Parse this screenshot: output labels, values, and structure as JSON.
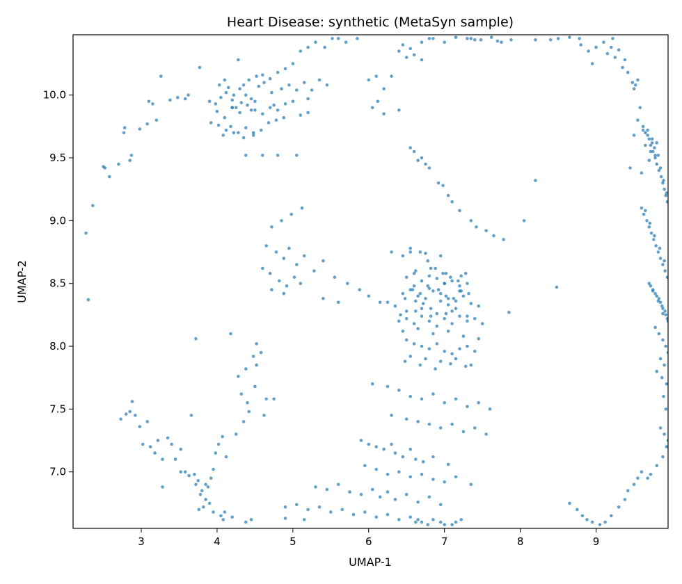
{
  "chart_data": {
    "type": "scatter",
    "title": "Heart Disease: synthetic (MetaSyn sample)",
    "xlabel": "UMAP-1",
    "ylabel": "UMAP-2",
    "xlim": [
      2.1,
      9.95
    ],
    "ylim": [
      6.55,
      10.48
    ],
    "xticks": [
      3,
      4,
      5,
      6,
      7,
      8,
      9
    ],
    "yticks": [
      7.0,
      7.5,
      8.0,
      8.5,
      9.0,
      9.5,
      10.0
    ],
    "grid": false,
    "point_color": "#1f77b4",
    "series": [
      {
        "x": [
          2.27,
          2.3,
          2.36,
          2.5,
          2.52,
          2.58,
          2.7,
          2.77,
          2.78,
          2.85,
          2.87,
          2.98,
          3.08,
          3.1,
          3.15,
          3.2,
          3.26,
          3.38,
          3.48,
          3.58,
          3.62,
          3.77,
          3.9,
          3.98,
          4.03,
          4.1,
          4.15,
          4.22,
          4.28,
          4.35,
          4.42,
          4.52,
          4.6,
          4.7,
          4.8,
          4.9,
          5.0,
          5.1,
          5.2,
          5.3,
          5.42,
          5.52,
          4.05,
          4.12,
          4.2,
          4.3,
          4.38,
          4.45,
          4.55,
          4.62,
          4.72,
          4.85,
          4.95,
          5.05,
          5.15,
          5.25,
          5.35,
          5.45,
          4.0,
          4.1,
          4.2,
          4.3,
          4.4,
          4.5,
          4.6,
          4.7,
          4.8,
          4.9,
          5.0,
          5.1,
          5.2,
          4.25,
          4.5,
          4.75,
          5.2,
          3.92,
          4.02,
          4.12,
          4.18,
          4.28,
          4.38,
          4.48,
          4.58,
          4.68,
          4.78,
          4.88,
          4.08,
          4.22,
          4.35,
          4.48,
          4.2,
          4.32,
          4.45,
          4.38,
          4.6,
          4.8,
          5.05,
          5.6,
          5.7,
          5.85,
          6.0,
          6.1,
          6.2,
          6.3,
          6.4,
          6.5,
          6.6,
          6.7,
          6.85,
          7.0,
          7.15,
          7.3,
          7.4,
          6.45,
          6.55,
          6.7,
          6.8,
          7.35,
          7.48,
          7.62,
          7.7,
          7.75,
          7.88,
          8.2,
          8.4,
          8.5,
          8.65,
          8.78,
          8.8,
          8.9,
          8.95,
          9.0,
          9.1,
          9.15,
          9.2,
          9.25,
          9.3,
          9.35,
          9.42,
          9.48,
          9.5,
          9.55,
          9.22,
          9.38,
          9.52,
          6.05,
          6.12,
          6.2,
          6.4,
          6.55,
          6.6,
          6.65,
          6.7,
          6.75,
          6.8,
          6.92,
          6.98,
          7.05,
          7.1,
          7.2,
          7.35,
          7.42,
          7.55,
          7.65,
          7.78,
          6.3,
          6.45,
          6.55,
          6.68,
          6.78,
          6.88,
          6.98,
          7.08,
          7.18,
          7.28,
          6.58,
          6.68,
          6.78,
          6.92,
          7.02,
          7.12,
          7.22,
          7.32,
          6.25,
          6.35,
          6.48,
          6.62,
          6.72,
          6.82,
          6.95,
          7.05,
          7.15,
          6.42,
          6.62,
          6.82,
          7.02,
          6.4,
          6.5,
          6.6,
          6.7,
          6.8,
          6.9,
          7.0,
          7.1,
          7.2,
          7.3,
          7.4,
          7.5,
          6.45,
          6.65,
          6.85,
          7.05,
          7.25,
          7.45,
          6.5,
          6.6,
          6.7,
          6.8,
          6.9,
          7.0,
          7.1,
          7.2,
          7.3,
          7.4,
          6.55,
          6.75,
          6.95,
          7.15,
          7.35,
          6.48,
          6.68,
          6.88,
          7.08,
          7.28,
          6.45,
          6.55,
          6.65,
          6.75,
          6.85,
          6.95,
          7.05,
          7.15,
          7.25,
          7.35,
          7.45,
          6.6,
          6.8,
          7.0,
          7.2,
          6.5,
          6.7,
          6.9,
          7.1,
          7.3,
          6.5,
          6.6,
          6.7,
          6.8,
          6.9,
          7.0,
          7.1,
          7.2,
          7.3,
          6.62,
          6.82,
          7.02,
          7.22,
          6.55,
          6.75,
          6.95,
          6.05,
          6.25,
          6.4,
          6.55,
          6.7,
          6.85,
          7.0,
          7.15,
          7.3,
          7.45,
          7.6,
          6.3,
          6.5,
          6.65,
          6.8,
          6.95,
          7.1,
          7.25,
          7.4,
          7.55,
          5.9,
          6.0,
          6.1,
          6.2,
          6.3,
          6.35,
          6.45,
          6.55,
          6.62,
          6.72,
          6.85,
          7.05,
          5.95,
          6.1,
          6.25,
          6.4,
          6.55,
          6.7,
          6.85,
          7.0,
          7.15,
          7.35,
          5.3,
          5.45,
          5.6,
          5.75,
          5.9,
          6.05,
          6.15,
          6.25,
          6.35,
          6.5,
          6.65,
          6.8,
          6.95,
          4.9,
          5.05,
          5.2,
          5.35,
          5.5,
          5.65,
          5.8,
          5.95,
          6.1,
          6.25,
          6.4,
          6.55,
          6.7,
          6.85,
          7.0,
          7.15,
          4.65,
          4.78,
          4.88,
          4.95,
          5.05,
          5.15,
          5.28,
          5.4,
          5.55,
          5.72,
          5.88,
          6.0,
          6.15,
          4.72,
          4.85,
          4.98,
          5.12,
          4.6,
          4.7,
          4.82,
          4.92,
          5.02,
          4.72,
          5.1,
          4.88,
          5.4,
          5.6,
          3.72,
          4.18,
          4.28,
          4.4,
          4.5,
          4.58,
          4.65,
          4.75,
          4.52,
          4.35,
          4.25,
          4.42,
          4.62,
          4.52,
          4.38,
          4.48,
          4.32,
          2.73,
          2.8,
          2.85,
          2.88,
          2.92,
          2.98,
          3.02,
          3.08,
          3.12,
          3.18,
          3.22,
          3.28,
          3.35,
          3.4,
          3.45,
          3.52,
          3.58,
          3.63,
          3.7,
          3.72,
          3.75,
          3.8,
          3.85,
          3.88,
          3.92,
          3.95,
          3.98,
          4.02,
          4.07,
          4.12,
          3.78,
          3.85,
          3.9,
          3.82,
          3.76,
          3.95,
          4.1,
          4.05,
          3.66,
          3.52,
          3.28,
          4.08,
          4.2,
          4.38,
          4.45,
          4.9,
          5.15,
          8.65,
          8.75,
          8.82,
          8.88,
          8.95,
          9.05,
          9.12,
          9.2,
          9.3,
          9.38,
          9.42,
          9.5,
          9.55,
          9.6,
          9.68,
          9.72,
          9.8,
          9.88,
          9.93,
          9.95,
          9.9,
          9.62,
          9.65,
          9.7,
          9.72,
          9.75,
          9.78,
          9.8,
          9.83,
          9.86,
          9.88,
          9.9,
          9.92,
          9.94,
          9.68,
          9.74,
          9.82,
          9.85,
          9.89,
          9.93,
          9.77,
          9.6,
          9.63,
          9.67,
          9.7,
          9.73,
          9.76,
          9.79,
          9.82,
          9.85,
          9.88,
          9.91,
          9.94,
          9.65,
          9.71,
          9.77,
          9.84,
          9.9,
          9.7,
          9.75,
          9.8,
          9.85,
          9.88,
          9.92,
          9.95,
          9.72,
          9.78,
          9.83,
          9.87,
          9.91,
          9.94,
          9.75,
          9.82,
          9.88,
          9.78,
          9.83,
          9.88,
          9.92,
          9.95,
          9.85,
          9.9,
          9.8,
          9.87,
          9.93,
          9.89,
          9.92,
          9.85,
          9.55,
          9.62,
          9.68,
          9.74,
          9.58,
          9.65,
          9.72,
          9.8,
          9.5,
          9.45,
          9.6,
          9.7,
          9.78,
          8.05,
          8.2,
          8.48,
          7.85,
          6.95,
          7.1,
          7.22,
          6.78,
          6.65,
          6.62
        ],
        "y": [
          8.9,
          8.37,
          9.12,
          9.43,
          9.42,
          9.35,
          9.45,
          9.7,
          9.74,
          9.48,
          9.52,
          9.73,
          9.77,
          9.95,
          9.93,
          9.8,
          10.15,
          9.96,
          9.98,
          9.97,
          10.0,
          10.22,
          9.95,
          9.93,
          10.08,
          10.12,
          10.06,
          10.0,
          10.28,
          10.08,
          10.12,
          10.15,
          10.16,
          10.13,
          10.18,
          10.21,
          10.25,
          10.35,
          10.38,
          10.42,
          10.38,
          10.45,
          9.98,
          10.02,
          9.96,
          10.05,
          10.0,
          9.97,
          10.07,
          10.1,
          10.02,
          10.05,
          10.08,
          10.04,
          10.1,
          10.04,
          10.12,
          10.08,
          9.87,
          9.82,
          9.9,
          9.86,
          9.92,
          9.88,
          9.85,
          9.9,
          9.88,
          9.93,
          9.95,
          9.84,
          9.86,
          9.9,
          9.95,
          9.92,
          9.97,
          9.78,
          9.76,
          9.72,
          9.75,
          9.7,
          9.74,
          9.68,
          9.72,
          9.78,
          9.8,
          9.82,
          9.68,
          9.7,
          9.66,
          9.7,
          9.9,
          9.94,
          9.88,
          9.52,
          9.52,
          9.52,
          9.52,
          10.45,
          10.42,
          10.45,
          10.12,
          10.15,
          10.05,
          10.15,
          10.35,
          10.3,
          10.32,
          10.28,
          10.45,
          10.42,
          10.46,
          10.45,
          10.44,
          10.4,
          10.37,
          10.42,
          10.45,
          10.45,
          10.44,
          10.46,
          10.43,
          10.42,
          10.44,
          10.44,
          10.44,
          10.45,
          10.46,
          10.45,
          10.4,
          10.35,
          10.25,
          10.38,
          10.42,
          10.33,
          10.38,
          10.3,
          10.36,
          10.22,
          10.18,
          10.1,
          10.05,
          10.12,
          10.45,
          10.28,
          10.08,
          9.9,
          9.95,
          9.85,
          9.88,
          9.58,
          9.55,
          9.48,
          9.5,
          9.45,
          9.42,
          9.3,
          9.28,
          9.2,
          9.15,
          9.08,
          9.0,
          8.95,
          8.92,
          8.88,
          8.85,
          8.75,
          8.72,
          8.78,
          8.75,
          8.68,
          8.62,
          8.58,
          8.55,
          8.52,
          8.58,
          8.45,
          8.42,
          8.48,
          8.45,
          8.4,
          8.38,
          8.44,
          8.42,
          8.35,
          8.32,
          8.38,
          8.36,
          8.34,
          8.3,
          8.36,
          8.33,
          8.3,
          8.25,
          8.28,
          8.24,
          8.26,
          8.2,
          8.22,
          8.18,
          8.24,
          8.2,
          8.16,
          8.22,
          8.18,
          8.24,
          8.2,
          8.22,
          8.18,
          8.12,
          8.14,
          8.1,
          8.12,
          8.08,
          8.06,
          8.05,
          8.02,
          8.0,
          7.98,
          8.02,
          7.96,
          7.94,
          7.98,
          8.0,
          7.96,
          7.92,
          7.9,
          7.88,
          7.9,
          7.85,
          7.88,
          7.85,
          7.82,
          7.86,
          7.84,
          8.42,
          8.45,
          8.4,
          8.38,
          8.44,
          8.42,
          8.38,
          8.36,
          8.4,
          8.34,
          8.32,
          8.48,
          8.46,
          8.5,
          8.44,
          8.28,
          8.3,
          8.26,
          8.28,
          8.24,
          8.55,
          8.58,
          8.52,
          8.56,
          8.54,
          8.5,
          8.52,
          8.48,
          8.5,
          8.6,
          8.62,
          8.58,
          8.56,
          8.75,
          8.74,
          8.72,
          7.7,
          7.68,
          7.65,
          7.6,
          7.58,
          7.62,
          7.55,
          7.58,
          7.52,
          7.55,
          7.5,
          7.45,
          7.42,
          7.4,
          7.38,
          7.35,
          7.38,
          7.32,
          7.35,
          7.3,
          7.25,
          7.22,
          7.2,
          7.18,
          7.22,
          7.15,
          7.12,
          7.18,
          7.1,
          7.08,
          7.12,
          7.06,
          7.05,
          7.02,
          6.98,
          7.0,
          6.96,
          6.98,
          6.94,
          6.92,
          6.96,
          6.9,
          6.88,
          6.86,
          6.9,
          6.84,
          6.82,
          6.86,
          6.8,
          6.84,
          6.78,
          6.82,
          6.76,
          6.8,
          6.74,
          6.72,
          6.74,
          6.7,
          6.72,
          6.68,
          6.7,
          6.66,
          6.68,
          6.64,
          6.66,
          6.62,
          6.64,
          6.6,
          6.62,
          6.58,
          6.6,
          8.8,
          8.75,
          8.7,
          8.78,
          8.65,
          8.72,
          8.6,
          8.68,
          8.55,
          8.5,
          8.45,
          8.4,
          8.35,
          8.95,
          9.0,
          9.05,
          9.1,
          8.62,
          8.58,
          8.52,
          8.48,
          8.55,
          8.45,
          8.5,
          8.42,
          8.38,
          8.35,
          8.06,
          8.1,
          7.76,
          7.55,
          7.68,
          7.95,
          7.58,
          7.58,
          7.85,
          7.4,
          7.3,
          7.48,
          7.45,
          8.02,
          7.82,
          7.92,
          7.62,
          7.42,
          7.46,
          7.48,
          7.56,
          7.45,
          7.36,
          7.22,
          7.4,
          7.2,
          7.15,
          7.25,
          7.1,
          7.27,
          7.22,
          7.1,
          7.18,
          7.0,
          6.97,
          6.98,
          6.9,
          6.93,
          6.85,
          6.9,
          6.88,
          6.95,
          7.02,
          7.15,
          7.22,
          7.28,
          7.12,
          6.82,
          6.78,
          6.75,
          6.72,
          6.7,
          6.68,
          6.68,
          6.65,
          7.45,
          7.0,
          6.88,
          6.62,
          6.64,
          6.6,
          6.62,
          6.63,
          6.62,
          6.75,
          6.7,
          6.65,
          6.62,
          6.6,
          6.58,
          6.6,
          6.65,
          6.72,
          6.78,
          6.85,
          6.9,
          6.95,
          7.0,
          6.95,
          6.98,
          7.05,
          7.12,
          7.2,
          7.25,
          7.3,
          9.75,
          9.7,
          9.65,
          9.6,
          9.55,
          9.5,
          9.45,
          9.4,
          9.35,
          9.3,
          9.25,
          9.2,
          9.15,
          9.72,
          9.62,
          9.52,
          9.42,
          9.32,
          9.22,
          9.58,
          9.1,
          9.05,
          9.0,
          8.95,
          8.9,
          8.85,
          8.8,
          8.75,
          8.7,
          8.65,
          8.6,
          8.55,
          9.08,
          8.98,
          8.88,
          8.78,
          8.68,
          8.5,
          8.45,
          8.4,
          8.35,
          8.3,
          8.25,
          8.2,
          8.48,
          8.42,
          8.38,
          8.32,
          8.28,
          8.22,
          8.44,
          8.36,
          8.26,
          8.15,
          8.1,
          8.05,
          8.0,
          7.95,
          7.9,
          7.85,
          7.8,
          7.75,
          7.7,
          7.6,
          7.5,
          7.35,
          9.8,
          9.72,
          9.68,
          9.65,
          9.9,
          9.6,
          9.55,
          9.62,
          9.68,
          9.42,
          9.38,
          9.48,
          9.52,
          9.0,
          9.32,
          8.47,
          8.27,
          6.6,
          6.58,
          6.62,
          6.58,
          6.62,
          6.6
        ]
      }
    ]
  }
}
